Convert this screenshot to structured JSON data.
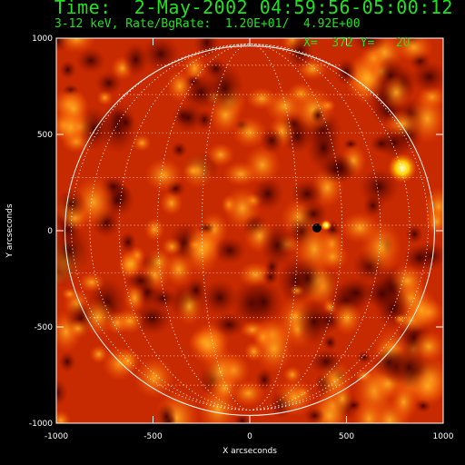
{
  "header": {
    "time_line": "Time:  2-May-2002 04:59:56-05:00:12",
    "rate_line": "3-12 keV, Rate/BgRate:  1.20E+01/  4.92E+00",
    "cursor_readout": "X=  372 Y=   20"
  },
  "plot": {
    "xlabel": "X arcseconds",
    "ylabel": "Y arcseconds",
    "xrange": [
      -1000,
      1000
    ],
    "yrange": [
      -1000,
      1000
    ],
    "x_ticks": [
      "-1000",
      "-500",
      "0",
      "500",
      "1000"
    ],
    "y_ticks": [
      "1000",
      "500",
      "0",
      "-500",
      "-1000"
    ],
    "solar_limb_radius_arcsec": 955,
    "colors": {
      "text": "#22e022",
      "limb": "#ffffff",
      "map_dark": "#3a0000",
      "map_mid": "#d42a00",
      "map_bright": "#ffff90"
    }
  }
}
